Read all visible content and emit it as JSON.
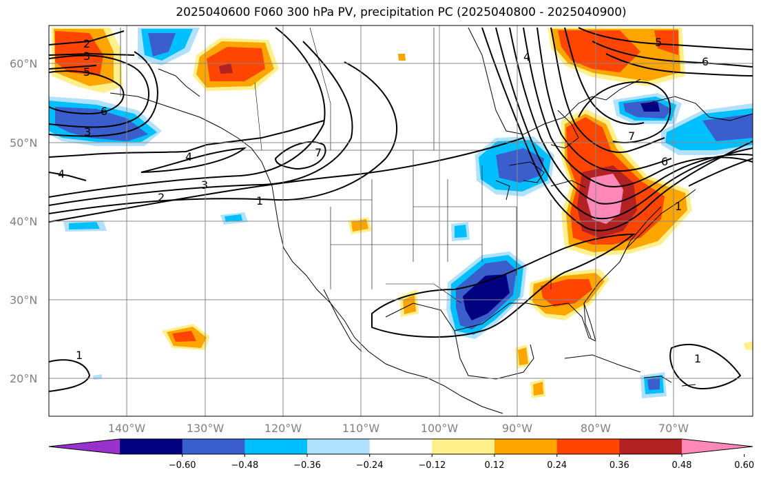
{
  "title": "2025040600 F060 300 hPa PV, precipitation PC (2025040800 - 2025040900)",
  "lat_labels": [
    "60°N",
    "50°N",
    "40°N",
    "30°N",
    "20°N"
  ],
  "lon_labels": [
    "140°W",
    "130°W",
    "120°W",
    "110°W",
    "100°W",
    "90°W",
    "80°W",
    "70°W"
  ],
  "colorbar": {
    "levels": [
      "−0.60",
      "−0.48",
      "−0.36",
      "−0.24",
      "−0.12",
      "0.12",
      "0.24",
      "0.36",
      "0.48",
      "0.60"
    ],
    "colors": [
      "#9932cc",
      "#000080",
      "#3a5fcd",
      "#00bfff",
      "#b0e2ff",
      "#ffffff",
      "#fff08c",
      "#ffa500",
      "#ff4500",
      "#b22222",
      "#ff88b8"
    ]
  },
  "contour_labels": [
    {
      "text": "2"
    },
    {
      "text": "3"
    },
    {
      "text": "5"
    },
    {
      "text": "6"
    },
    {
      "text": "3"
    },
    {
      "text": "4"
    },
    {
      "text": "3"
    },
    {
      "text": "2"
    },
    {
      "text": "1"
    },
    {
      "text": "4"
    },
    {
      "text": "1"
    },
    {
      "text": "7"
    },
    {
      "text": "7"
    },
    {
      "text": "6"
    },
    {
      "text": "5"
    },
    {
      "text": "6"
    },
    {
      "text": "1"
    },
    {
      "text": "1"
    },
    {
      "text": "4"
    }
  ]
}
